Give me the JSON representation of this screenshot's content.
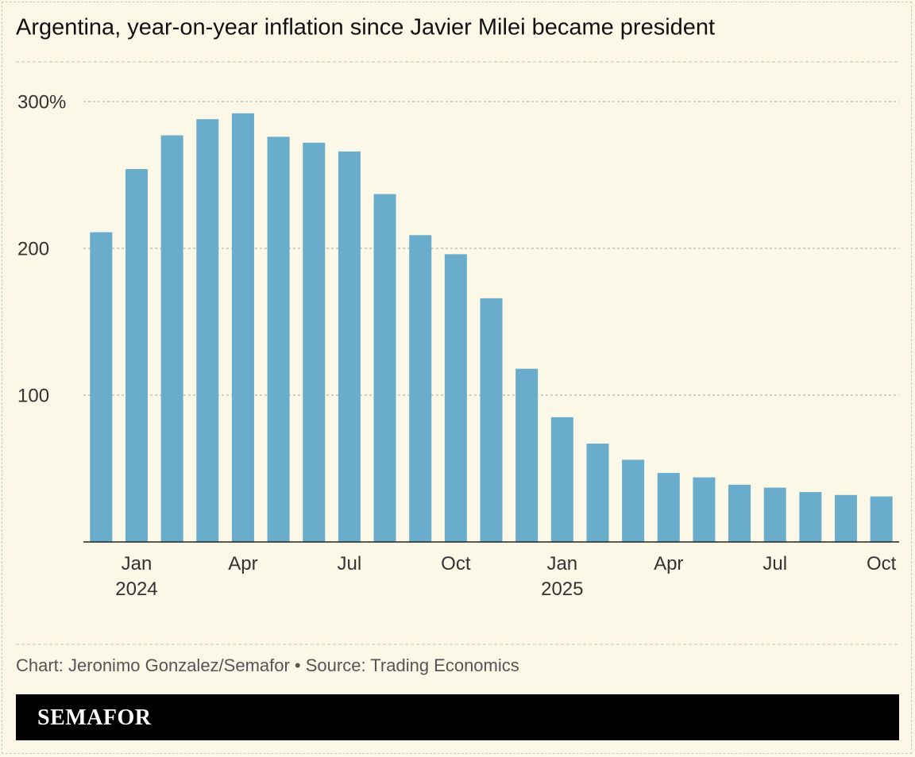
{
  "chart_data": {
    "type": "bar",
    "title": "Argentina, year-on-year inflation since Javier Milei became president",
    "source": "Chart: Jeronimo Gonzalez/Semafor • Source: Trading Economics",
    "brand": "SEMAFOR",
    "categories": [
      null,
      "Jan\n2024",
      null,
      null,
      "Apr",
      null,
      null,
      "Jul",
      null,
      null,
      "Oct",
      null,
      null,
      "Jan\n2025",
      null,
      null,
      "Apr",
      null,
      null,
      "Jul",
      null,
      null,
      "Oct"
    ],
    "values": [
      211,
      254,
      277,
      288,
      292,
      276,
      272,
      266,
      237,
      209,
      196,
      166,
      118,
      85,
      67,
      56,
      47,
      44,
      39,
      37,
      34,
      32,
      31
    ],
    "color": "#6aaccb",
    "ylim": [
      0,
      300
    ],
    "yticks": [
      {
        "value": 100,
        "label": "100"
      },
      {
        "value": 200,
        "label": "200"
      },
      {
        "value": 300,
        "label": "300%"
      }
    ],
    "grid": true
  }
}
